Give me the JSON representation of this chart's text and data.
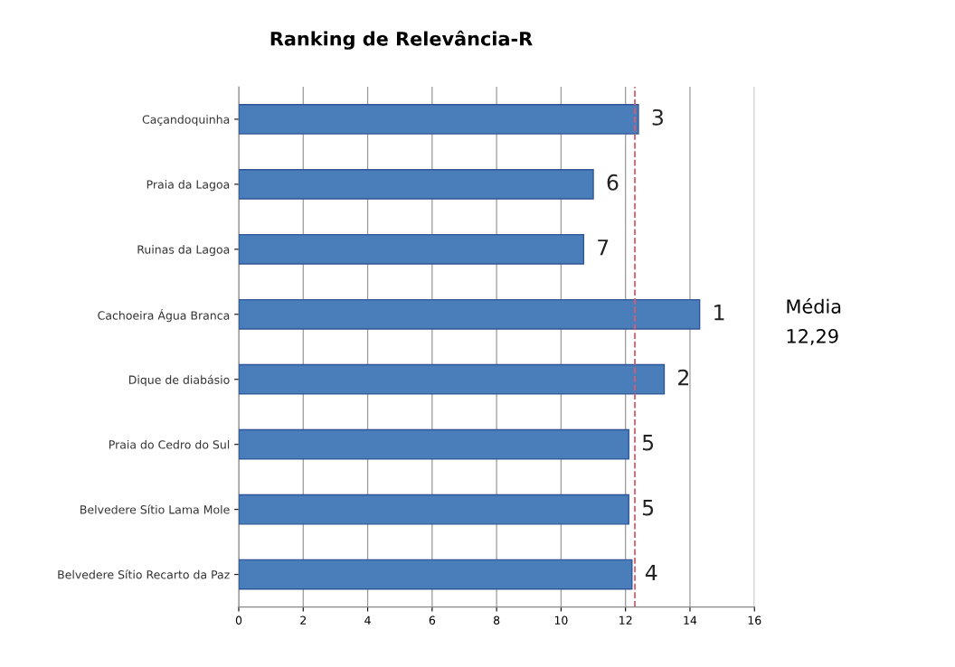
{
  "chart_data": {
    "type": "bar",
    "orientation": "horizontal",
    "title": "Ranking de Relevância-R",
    "categories": [
      "Caçandoquinha",
      "Praia da Lagoa",
      "Ruinas da Lagoa",
      "Cachoeira Água Branca",
      "Dique de diabásio",
      "Praia do Cedro do Sul",
      "Belvedere Sítio Lama Mole",
      "Belvedere Sítio Recarto da Paz"
    ],
    "values": [
      12.4,
      11.0,
      10.7,
      14.3,
      13.2,
      12.1,
      12.1,
      12.2
    ],
    "annotations": [
      {
        "text": "3",
        "x": 12.4,
        "y": "Caçandoquinha"
      },
      {
        "text": "6",
        "x": 11.0,
        "y": "Praia da Lagoa"
      },
      {
        "text": "7",
        "x": 10.7,
        "y": "Ruinas da Lagoa"
      },
      {
        "text": "1",
        "x": 14.3,
        "y": "Cachoeira Água Branca"
      },
      {
        "text": "2",
        "x": 13.2,
        "y": "Dique de diabásio"
      },
      {
        "text": "5",
        "x": 12.1,
        "y": "Praia do Cedro do Sul"
      },
      {
        "text": "5",
        "x": 12.1,
        "y": "Belvedere Sítio Lama Mole"
      },
      {
        "text": "4",
        "x": 12.2,
        "y": "Belvedere Sítio Recarto da Paz"
      },
      "Média\n12,29"
    ],
    "color": "#4a7ebb",
    "xlim": [
      0,
      16
    ],
    "xticks": [
      0,
      2,
      4,
      6,
      8,
      10,
      12,
      14,
      16
    ],
    "grid": "x",
    "ref_lines": [
      {
        "axis": "x",
        "value": 12.29,
        "color": "#e05a6a",
        "line_style": "dashed"
      }
    ]
  }
}
